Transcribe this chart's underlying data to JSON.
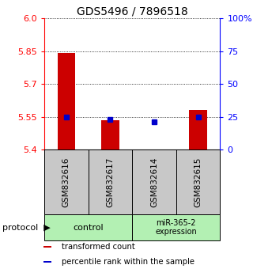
{
  "title": "GDS5496 / 7896518",
  "samples": [
    "GSM832616",
    "GSM832617",
    "GSM832614",
    "GSM832615"
  ],
  "transformed_count": [
    5.84,
    5.535,
    5.403,
    5.58
  ],
  "percentile_rank": [
    5.551,
    5.537,
    5.529,
    5.549
  ],
  "ylim_left": [
    5.4,
    6.0
  ],
  "yticks_left": [
    5.4,
    5.55,
    5.7,
    5.85,
    6.0
  ],
  "ylim_right": [
    0,
    100
  ],
  "yticks_right": [
    0,
    25,
    50,
    75,
    100
  ],
  "yticklabels_right": [
    "0",
    "25",
    "50",
    "75",
    "100%"
  ],
  "bar_bottom": 5.4,
  "bar_color": "#cc0000",
  "dot_color": "#0000cc",
  "bg_plot": "#ffffff",
  "bg_sample": "#c8c8c8",
  "bg_group": "#b3f0b3",
  "legend_items": [
    {
      "color": "#cc0000",
      "label": "transformed count"
    },
    {
      "color": "#0000cc",
      "label": "percentile rank within the sample"
    }
  ]
}
